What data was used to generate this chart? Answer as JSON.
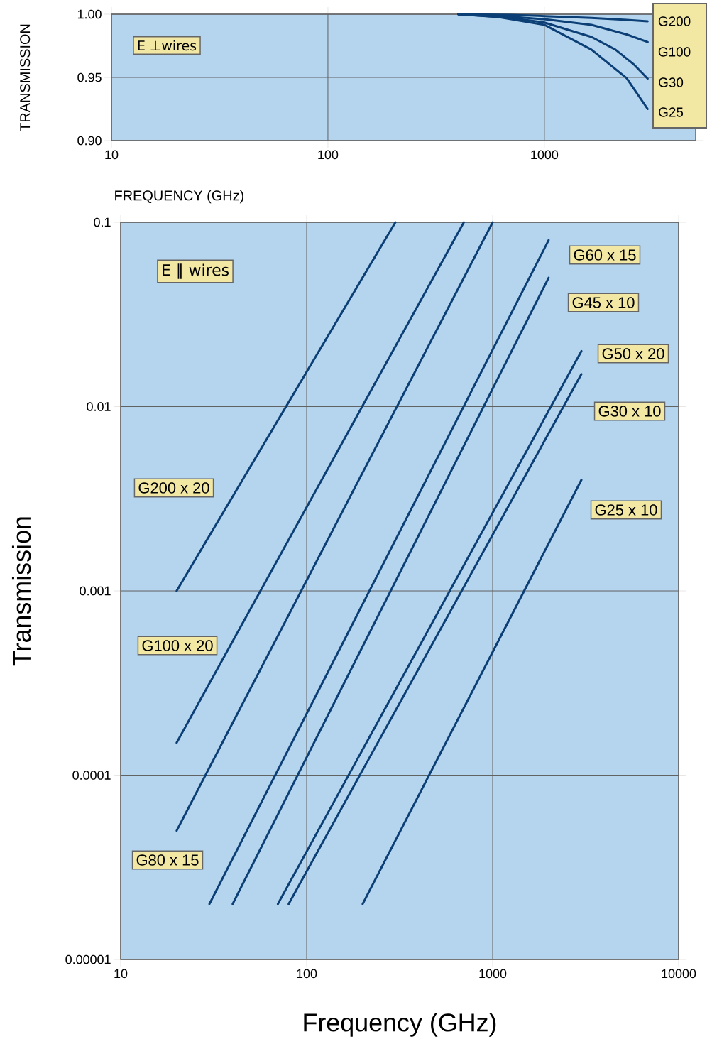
{
  "chart_data": [
    {
      "type": "line",
      "log": "x",
      "xlabel": "FREQUENCY (GHz)",
      "ylabel": "TRANSMISSION",
      "xlim": [
        10,
        5000
      ],
      "xticks": [
        10,
        100,
        1000
      ],
      "ylim": [
        0.9,
        1.0
      ],
      "yticks": [
        {
          "value": 0.9,
          "label": "0.90"
        },
        {
          "value": 0.95,
          "label": "0.95"
        },
        {
          "value": 1.0,
          "label": "1.00"
        }
      ],
      "grid": true,
      "annotations": [
        "E ⊥wires"
      ],
      "series": [
        {
          "name": "G200",
          "color": "#0b3f75",
          "x": [
            400,
            700,
            1000,
            1650,
            2400,
            3000
          ],
          "values": [
            1.0,
            0.9995,
            0.9985,
            0.997,
            0.9955,
            0.9944
          ]
        },
        {
          "name": "G100",
          "color": "#0b3f75",
          "x": [
            400,
            700,
            1000,
            1650,
            2400,
            3000
          ],
          "values": [
            1.0,
            0.998,
            0.996,
            0.9916,
            0.984,
            0.978
          ]
        },
        {
          "name": "G30",
          "color": "#0b3f75",
          "x": [
            400,
            700,
            1000,
            1650,
            2130,
            2600,
            3000
          ],
          "values": [
            1.0,
            0.997,
            0.9934,
            0.982,
            0.972,
            0.96,
            0.949
          ]
        },
        {
          "name": "G25",
          "color": "#0b3f75",
          "x": [
            400,
            600,
            1000,
            1650,
            2400,
            3000
          ],
          "values": [
            1.0,
            0.998,
            0.9916,
            0.972,
            0.9494,
            0.925
          ]
        }
      ]
    },
    {
      "type": "line",
      "log": "xy",
      "xlabel": "Frequency (GHz)",
      "ylabel": "Transmission",
      "xlim": [
        10,
        10000
      ],
      "xticks": [
        10,
        100,
        1000,
        10000
      ],
      "ylim": [
        1e-05,
        0.1
      ],
      "yticks": [
        {
          "value": 1e-05,
          "label": "0.00001"
        },
        {
          "value": 0.0001,
          "label": "0.0001"
        },
        {
          "value": 0.001,
          "label": "0.001"
        },
        {
          "value": 0.01,
          "label": "0.01"
        },
        {
          "value": 0.1,
          "label": "0.1"
        }
      ],
      "grid": true,
      "annotations": [
        "E ∥ wires"
      ],
      "series": [
        {
          "name": "G200 x 20",
          "color": "#0b3f75",
          "x": [
            20,
            300
          ],
          "values": [
            0.001,
            0.1
          ]
        },
        {
          "name": "G100 x 20",
          "color": "#0b3f75",
          "x": [
            20,
            700
          ],
          "values": [
            0.00015,
            0.1
          ]
        },
        {
          "name": "G80 x 15",
          "color": "#0b3f75",
          "x": [
            20,
            1000
          ],
          "values": [
            5e-05,
            0.1
          ]
        },
        {
          "name": "G60 x 15",
          "color": "#0b3f75",
          "x": [
            30,
            2000
          ],
          "values": [
            2e-05,
            0.08
          ]
        },
        {
          "name": "G45 x 10",
          "color": "#0b3f75",
          "x": [
            40,
            2000
          ],
          "values": [
            2e-05,
            0.05
          ]
        },
        {
          "name": "G50 x 20",
          "color": "#0b3f75",
          "x": [
            70,
            3000
          ],
          "values": [
            2e-05,
            0.02
          ]
        },
        {
          "name": "G30 x 10",
          "color": "#0b3f75",
          "x": [
            80,
            3000
          ],
          "values": [
            2e-05,
            0.015
          ]
        },
        {
          "name": "G25 x 10",
          "color": "#0b3f75",
          "x": [
            200,
            3000
          ],
          "values": [
            2e-05,
            0.004
          ]
        }
      ]
    }
  ]
}
